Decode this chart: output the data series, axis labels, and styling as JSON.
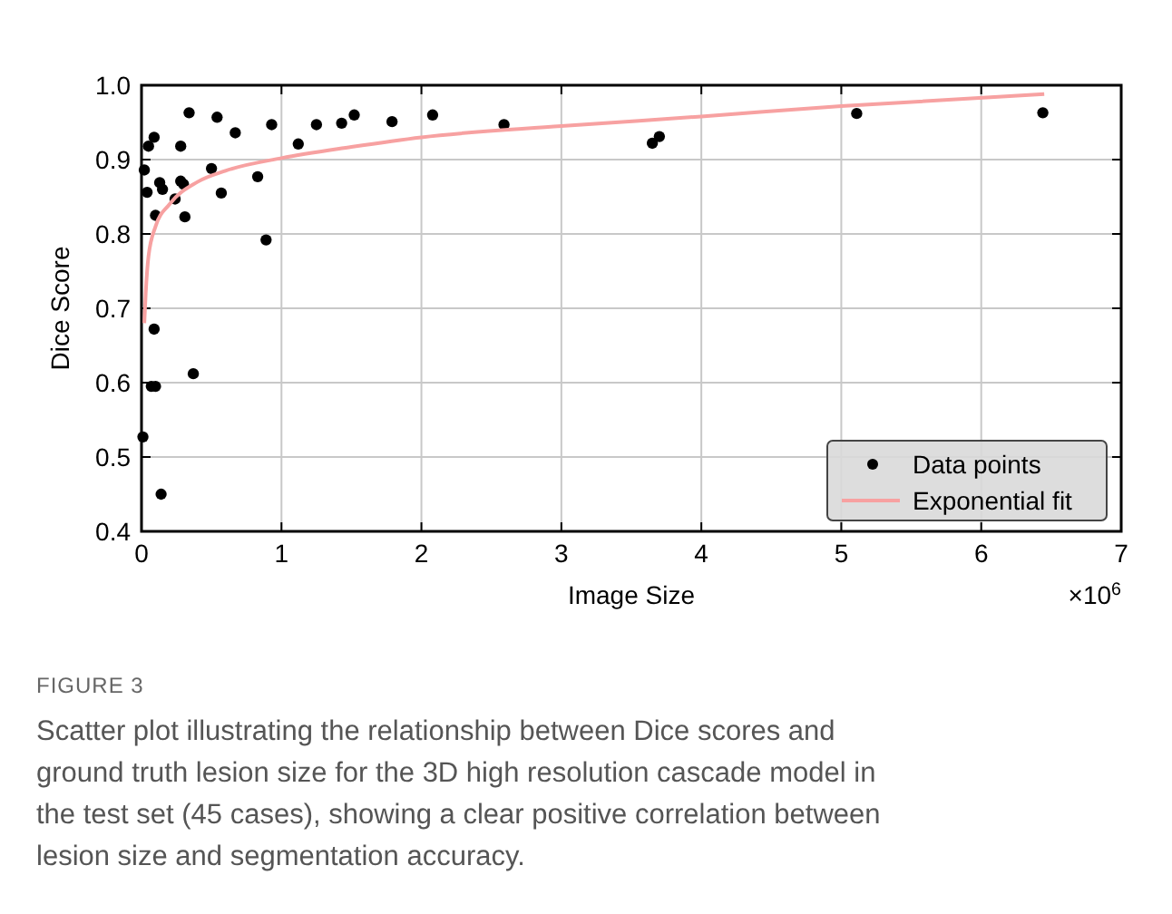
{
  "chart_data": {
    "type": "scatter",
    "xlabel": "Image Size",
    "ylabel": "Dice Score",
    "xlim": [
      0,
      7
    ],
    "ylim": [
      0.4,
      1.0
    ],
    "xticks": [
      0,
      1,
      2,
      3,
      4,
      5,
      6,
      7
    ],
    "yticks": [
      {
        "value": 0.4,
        "label": "0.4"
      },
      {
        "value": 0.5,
        "label": "0.5"
      },
      {
        "value": 0.6,
        "label": "0.6"
      },
      {
        "value": 0.7,
        "label": "0.7"
      },
      {
        "value": 0.8,
        "label": "0.8"
      },
      {
        "value": 0.9,
        "label": "0.9"
      },
      {
        "value": 1.0,
        "label": "1.0"
      }
    ],
    "grid": true,
    "legend": "bottom right",
    "series": [
      {
        "name": "Data points",
        "marker": "circle",
        "color": "#000000",
        "x": [
          0.34,
          0.54,
          0.67,
          0.93,
          1.12,
          1.25,
          1.43,
          1.52,
          1.79,
          2.08,
          0.09,
          0.05,
          0.28,
          0.02,
          0.5,
          0.13,
          0.15,
          0.04,
          0.28,
          0.3,
          0.24,
          0.57,
          0.83,
          0.1,
          0.31,
          0.89,
          0.09,
          0.07,
          0.1,
          0.37,
          0.01,
          0.14,
          2.59,
          3.65,
          3.7,
          5.11,
          6.44
        ],
        "values": [
          0.963,
          0.957,
          0.936,
          0.947,
          0.921,
          0.947,
          0.949,
          0.96,
          0.951,
          0.96,
          0.93,
          0.918,
          0.918,
          0.886,
          0.888,
          0.869,
          0.86,
          0.856,
          0.871,
          0.867,
          0.847,
          0.855,
          0.877,
          0.825,
          0.823,
          0.792,
          0.672,
          0.595,
          0.595,
          0.612,
          0.527,
          0.45,
          0.947,
          0.922,
          0.931,
          0.962,
          0.963
        ]
      },
      {
        "name": "Exponential fit",
        "type": "line",
        "marker": "none",
        "color": "#f7a1a1",
        "line_style": "solid",
        "x": [
          0.02,
          0.03,
          0.05,
          0.1,
          0.2,
          0.4,
          0.6,
          1,
          1.5,
          2,
          3,
          4,
          5,
          6.45
        ],
        "values": [
          0.68,
          0.72,
          0.77,
          0.81,
          0.84,
          0.87,
          0.885,
          0.902,
          0.917,
          0.93,
          0.945,
          0.958,
          0.972,
          0.988
        ]
      }
    ],
    "annotations": [
      "×10$^{6}$",
      "FIGURE 3",
      "Scatter plot illustrating the relationship between Dice scores and ground truth lesion size for the 3D high resolution cascade model in the test set (45 cases), showing a clear positive correlation between lesion size and segmentation accuracy."
    ]
  }
}
